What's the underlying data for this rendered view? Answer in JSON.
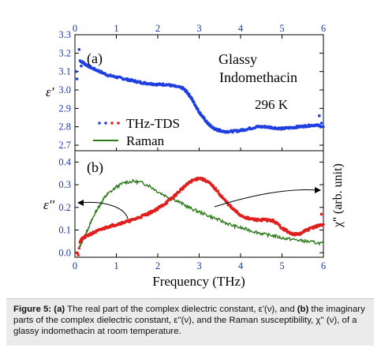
{
  "chart_data": [
    {
      "type": "scatter",
      "panel": "a",
      "panel_label": "(a)",
      "ylabel": "ε'",
      "top_axis_ticks": [
        "0",
        "1",
        "2",
        "3",
        "4",
        "5",
        "6"
      ],
      "ylim": [
        2.67,
        3.3
      ],
      "yticks": [
        "3.3",
        "3.2",
        "3.1",
        "3.0",
        "2.9",
        "2.8",
        "2.7"
      ],
      "xlim": [
        0,
        6
      ],
      "annotations": [
        "Glassy",
        "Indomethacin",
        "296 K"
      ],
      "legend": [
        {
          "name": "THz-TDS",
          "colors": [
            "#1f3fe0",
            "#e01f1f"
          ],
          "marker": "dots"
        },
        {
          "name": "Raman",
          "color": "#2c7a1a",
          "marker": "line"
        }
      ],
      "series": [
        {
          "name": "THz-TDS",
          "color": "#1f3fe0",
          "x": [
            0.12,
            0.25,
            0.4,
            0.6,
            0.8,
            1.0,
            1.2,
            1.4,
            1.6,
            1.8,
            2.0,
            2.2,
            2.4,
            2.6,
            2.7,
            2.8,
            2.9,
            3.0,
            3.1,
            3.2,
            3.3,
            3.4,
            3.5,
            3.6,
            3.8,
            4.0,
            4.2,
            4.4,
            4.6,
            4.8,
            5.0,
            5.2,
            5.4,
            5.6,
            5.8,
            6.0
          ],
          "y": [
            3.16,
            3.14,
            3.12,
            3.1,
            3.08,
            3.07,
            3.06,
            3.05,
            3.04,
            3.035,
            3.03,
            3.03,
            3.02,
            3.01,
            2.99,
            2.96,
            2.92,
            2.88,
            2.85,
            2.82,
            2.8,
            2.785,
            2.78,
            2.775,
            2.775,
            2.78,
            2.79,
            2.8,
            2.8,
            2.795,
            2.79,
            2.795,
            2.8,
            2.805,
            2.81,
            2.8
          ]
        },
        {
          "name": "THz-TDS outliers",
          "color": "#1f3fe0",
          "x": [
            0.03,
            0.05,
            0.1,
            0.15,
            5.9,
            5.95
          ],
          "y": [
            3.1,
            3.06,
            3.22,
            3.13,
            2.86,
            2.82
          ]
        }
      ]
    },
    {
      "type": "line",
      "panel": "b",
      "panel_label": "(b)",
      "ylabel": "ε''",
      "right_ylabel": "χ'' (arb. unit)",
      "xlabel": "Frequency (THz)",
      "xlim": [
        0,
        6
      ],
      "xticks": [
        "0",
        "1",
        "2",
        "3",
        "4",
        "5",
        "6"
      ],
      "ylim": [
        -0.02,
        0.45
      ],
      "yticks": [
        "0.0",
        "0.1",
        "0.2",
        "0.3",
        "0.4"
      ],
      "series": [
        {
          "name": "THz-TDS",
          "color": "#e01f1f",
          "x": [
            0.12,
            0.2,
            0.4,
            0.6,
            0.8,
            1.0,
            1.2,
            1.4,
            1.6,
            1.8,
            2.0,
            2.2,
            2.4,
            2.6,
            2.8,
            3.0,
            3.2,
            3.4,
            3.6,
            3.8,
            4.0,
            4.2,
            4.4,
            4.6,
            4.8,
            5.0,
            5.2,
            5.4,
            5.6,
            5.8,
            6.0
          ],
          "y": [
            0.05,
            0.065,
            0.085,
            0.1,
            0.115,
            0.125,
            0.135,
            0.145,
            0.16,
            0.175,
            0.195,
            0.22,
            0.25,
            0.285,
            0.315,
            0.33,
            0.315,
            0.28,
            0.235,
            0.195,
            0.165,
            0.15,
            0.145,
            0.145,
            0.14,
            0.11,
            0.085,
            0.08,
            0.1,
            0.115,
            0.125
          ]
        },
        {
          "name": "THz-TDS outliers",
          "color": "#e01f1f",
          "x": [
            0.05,
            0.08,
            0.1,
            5.95
          ],
          "y": [
            0.0,
            -0.01,
            0.02,
            0.17
          ]
        },
        {
          "name": "Raman",
          "color": "#2c7a1a",
          "x": [
            0.1,
            0.2,
            0.3,
            0.4,
            0.5,
            0.6,
            0.7,
            0.8,
            1.0,
            1.2,
            1.4,
            1.6,
            1.8,
            2.0,
            2.2,
            2.4,
            2.6,
            2.8,
            3.0,
            3.2,
            3.4,
            3.6,
            3.8,
            4.0,
            4.2,
            4.4,
            4.6,
            4.8,
            5.0,
            5.2,
            5.4,
            5.6,
            5.8,
            6.0
          ],
          "y": [
            0.02,
            0.06,
            0.1,
            0.14,
            0.18,
            0.21,
            0.24,
            0.26,
            0.29,
            0.31,
            0.315,
            0.31,
            0.295,
            0.27,
            0.25,
            0.235,
            0.215,
            0.195,
            0.18,
            0.165,
            0.15,
            0.135,
            0.12,
            0.11,
            0.1,
            0.09,
            0.08,
            0.075,
            0.065,
            0.06,
            0.055,
            0.05,
            0.045,
            0.04
          ]
        }
      ]
    }
  ],
  "caption": {
    "label": "Figure 5:",
    "a_label": "(a)",
    "b_label": "(b)",
    "text_1": "The real part of the complex dielectric constant, ε'(ν), and",
    "text_2": "the imaginary parts of the complex dielectric constant, ε''(ν), and the Raman susceptibility, χ'' (ν),  of a glassy indomethacin at room temperature."
  }
}
